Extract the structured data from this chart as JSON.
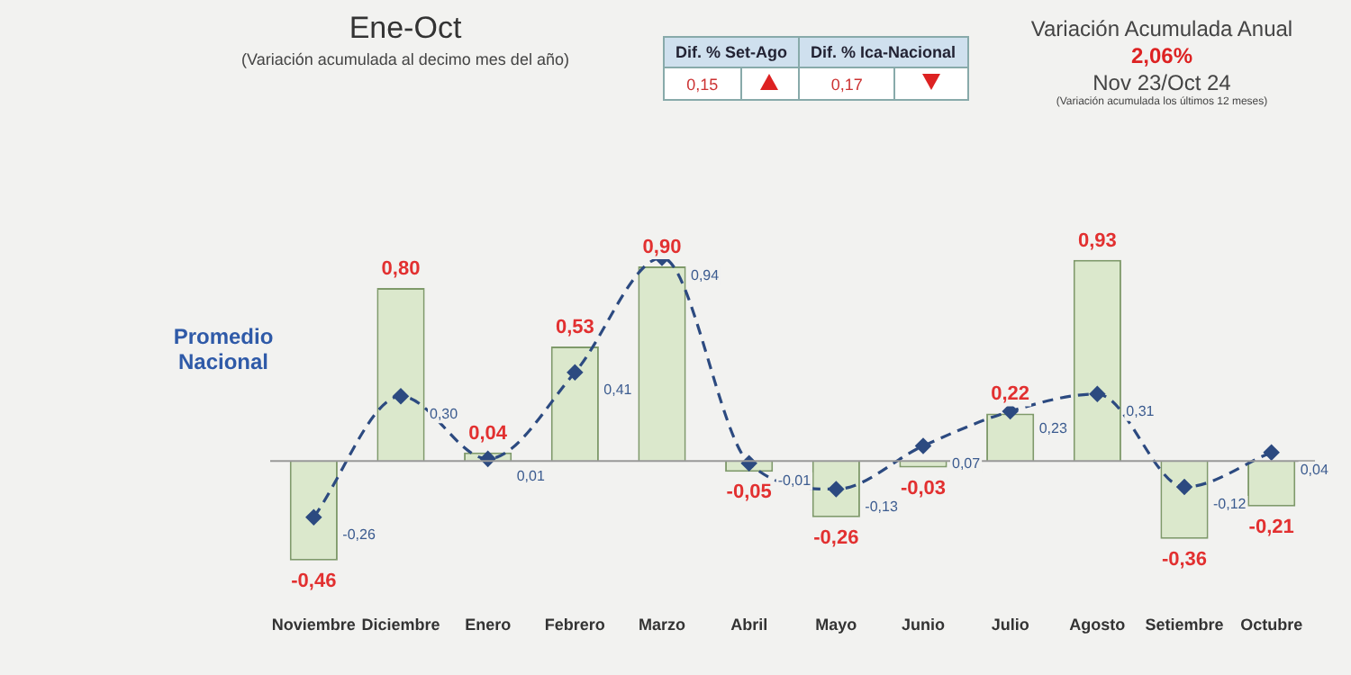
{
  "chart_data": {
    "type": "bar",
    "title": "Ene-Oct",
    "subtitle": "(Variación acumulada al decimo mes del año)",
    "annotations": [
      "Dif. % Set-Ago",
      "0,15",
      "Dif. % Ica-Nacional",
      "0,17",
      "Variación Acumulada Anual",
      "2,06%",
      "Nov 23/Oct 24",
      "(Variación acumulada los últimos 12 meses)"
    ],
    "categories": [
      "Noviembre",
      "Diciembre",
      "Enero",
      "Febrero",
      "Marzo",
      "Abril",
      "Mayo",
      "Junio",
      "Julio",
      "Agosto",
      "Setiembre",
      "Octubre"
    ],
    "series": [
      {
        "type": "bar",
        "color": "#dbe8cc",
        "values": [
          -0.46,
          0.8,
          0.04,
          0.53,
          0.9,
          -0.05,
          -0.26,
          -0.03,
          0.22,
          0.93,
          -0.36,
          -0.21
        ],
        "value_labels": [
          "-0,46",
          "0,80",
          "0,04",
          "0,53",
          "0,90",
          "-0,05",
          "-0,26",
          "-0,03",
          "0,22",
          "0,93",
          "-0,36",
          "-0,21"
        ]
      },
      {
        "type": "line",
        "name": "Promedio Nacional",
        "color": "#2c4a80",
        "line_style": "dashed",
        "marker": "diamond",
        "values": [
          -0.26,
          0.3,
          0.01,
          0.41,
          0.94,
          -0.01,
          -0.13,
          0.07,
          0.23,
          0.31,
          -0.12,
          0.04
        ],
        "value_labels": [
          "-0,26",
          "0,30",
          "0,01",
          "0,41",
          "0,94",
          "-0,01",
          "-0,13",
          "0,07",
          "0,23",
          "0,31",
          "-0,12",
          "0,04"
        ]
      }
    ],
    "tick_labels": "x",
    "grid": false,
    "legend": false
  }
}
